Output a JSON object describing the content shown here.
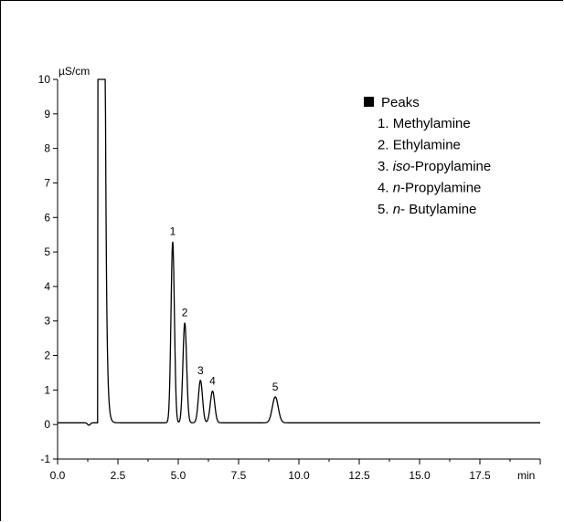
{
  "chart_data": {
    "type": "line",
    "title": "",
    "ylabel": "µS/cm",
    "xlabel": "min",
    "xlim": [
      0.0,
      20.0
    ],
    "ylim": [
      -1,
      10
    ],
    "x_ticks": [
      0.0,
      2.5,
      5.0,
      7.5,
      10.0,
      12.5,
      15.0,
      17.5
    ],
    "x_tick_labels": [
      "0.0",
      "2.5",
      "5.0",
      "7.5",
      "10.0",
      "12.5",
      "15.0",
      "17.5"
    ],
    "y_ticks": [
      -1,
      0,
      1,
      2,
      3,
      4,
      5,
      6,
      7,
      8,
      9,
      10
    ],
    "y_tick_labels": [
      "-1",
      "0",
      "1",
      "2",
      "3",
      "4",
      "5",
      "6",
      "7",
      "8",
      "9",
      "10"
    ],
    "baseline": 0.05,
    "peaks": [
      {
        "label": "1",
        "x": 4.77,
        "y": 5.3
      },
      {
        "label": "2",
        "x": 5.27,
        "y": 2.95
      },
      {
        "label": "3",
        "x": 5.92,
        "y": 1.28
      },
      {
        "label": "4",
        "x": 6.42,
        "y": 0.97
      },
      {
        "label": "5",
        "x": 9.02,
        "y": 0.8
      }
    ],
    "legend": {
      "title": "Peaks",
      "placement": "top-right",
      "entries": [
        {
          "num": "1.",
          "prefix": "",
          "name": "Methylamine"
        },
        {
          "num": "2.",
          "prefix": "",
          "name": "Ethylamine"
        },
        {
          "num": "3.",
          "prefix": "iso",
          "name": "-Propylamine"
        },
        {
          "num": "4.",
          "prefix": "n",
          "name": "-Propylamine"
        },
        {
          "num": "5.",
          "prefix": "n",
          "name": "- Butylamine"
        }
      ]
    }
  }
}
